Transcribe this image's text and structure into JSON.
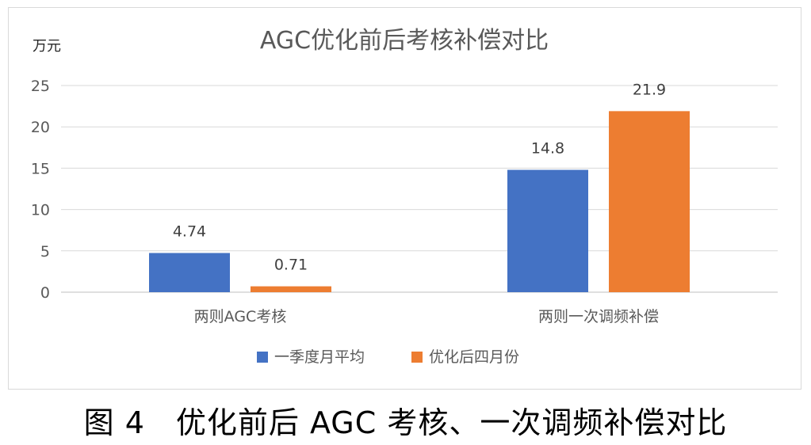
{
  "chart_data": {
    "type": "bar",
    "title": "AGC优化前后考核补偿对比",
    "ylabel": "万元",
    "ylim": [
      0,
      25
    ],
    "yticks": [
      "0",
      "5",
      "10",
      "15",
      "20",
      "25"
    ],
    "categories": [
      "两则AGC考核",
      "两则一次调频补偿"
    ],
    "series": [
      {
        "name": "一季度月平均",
        "color": "#4472c4",
        "values": [
          4.74,
          14.8
        ],
        "labels": [
          "4.74",
          "14.8"
        ]
      },
      {
        "name": "优化后四月份",
        "color": "#ed7d31",
        "values": [
          0.71,
          21.9
        ],
        "labels": [
          "0.71",
          "21.9"
        ]
      }
    ],
    "grid": true,
    "legend_position": "bottom"
  },
  "caption": "图 4　优化前后 AGC 考核、一次调频补偿对比"
}
